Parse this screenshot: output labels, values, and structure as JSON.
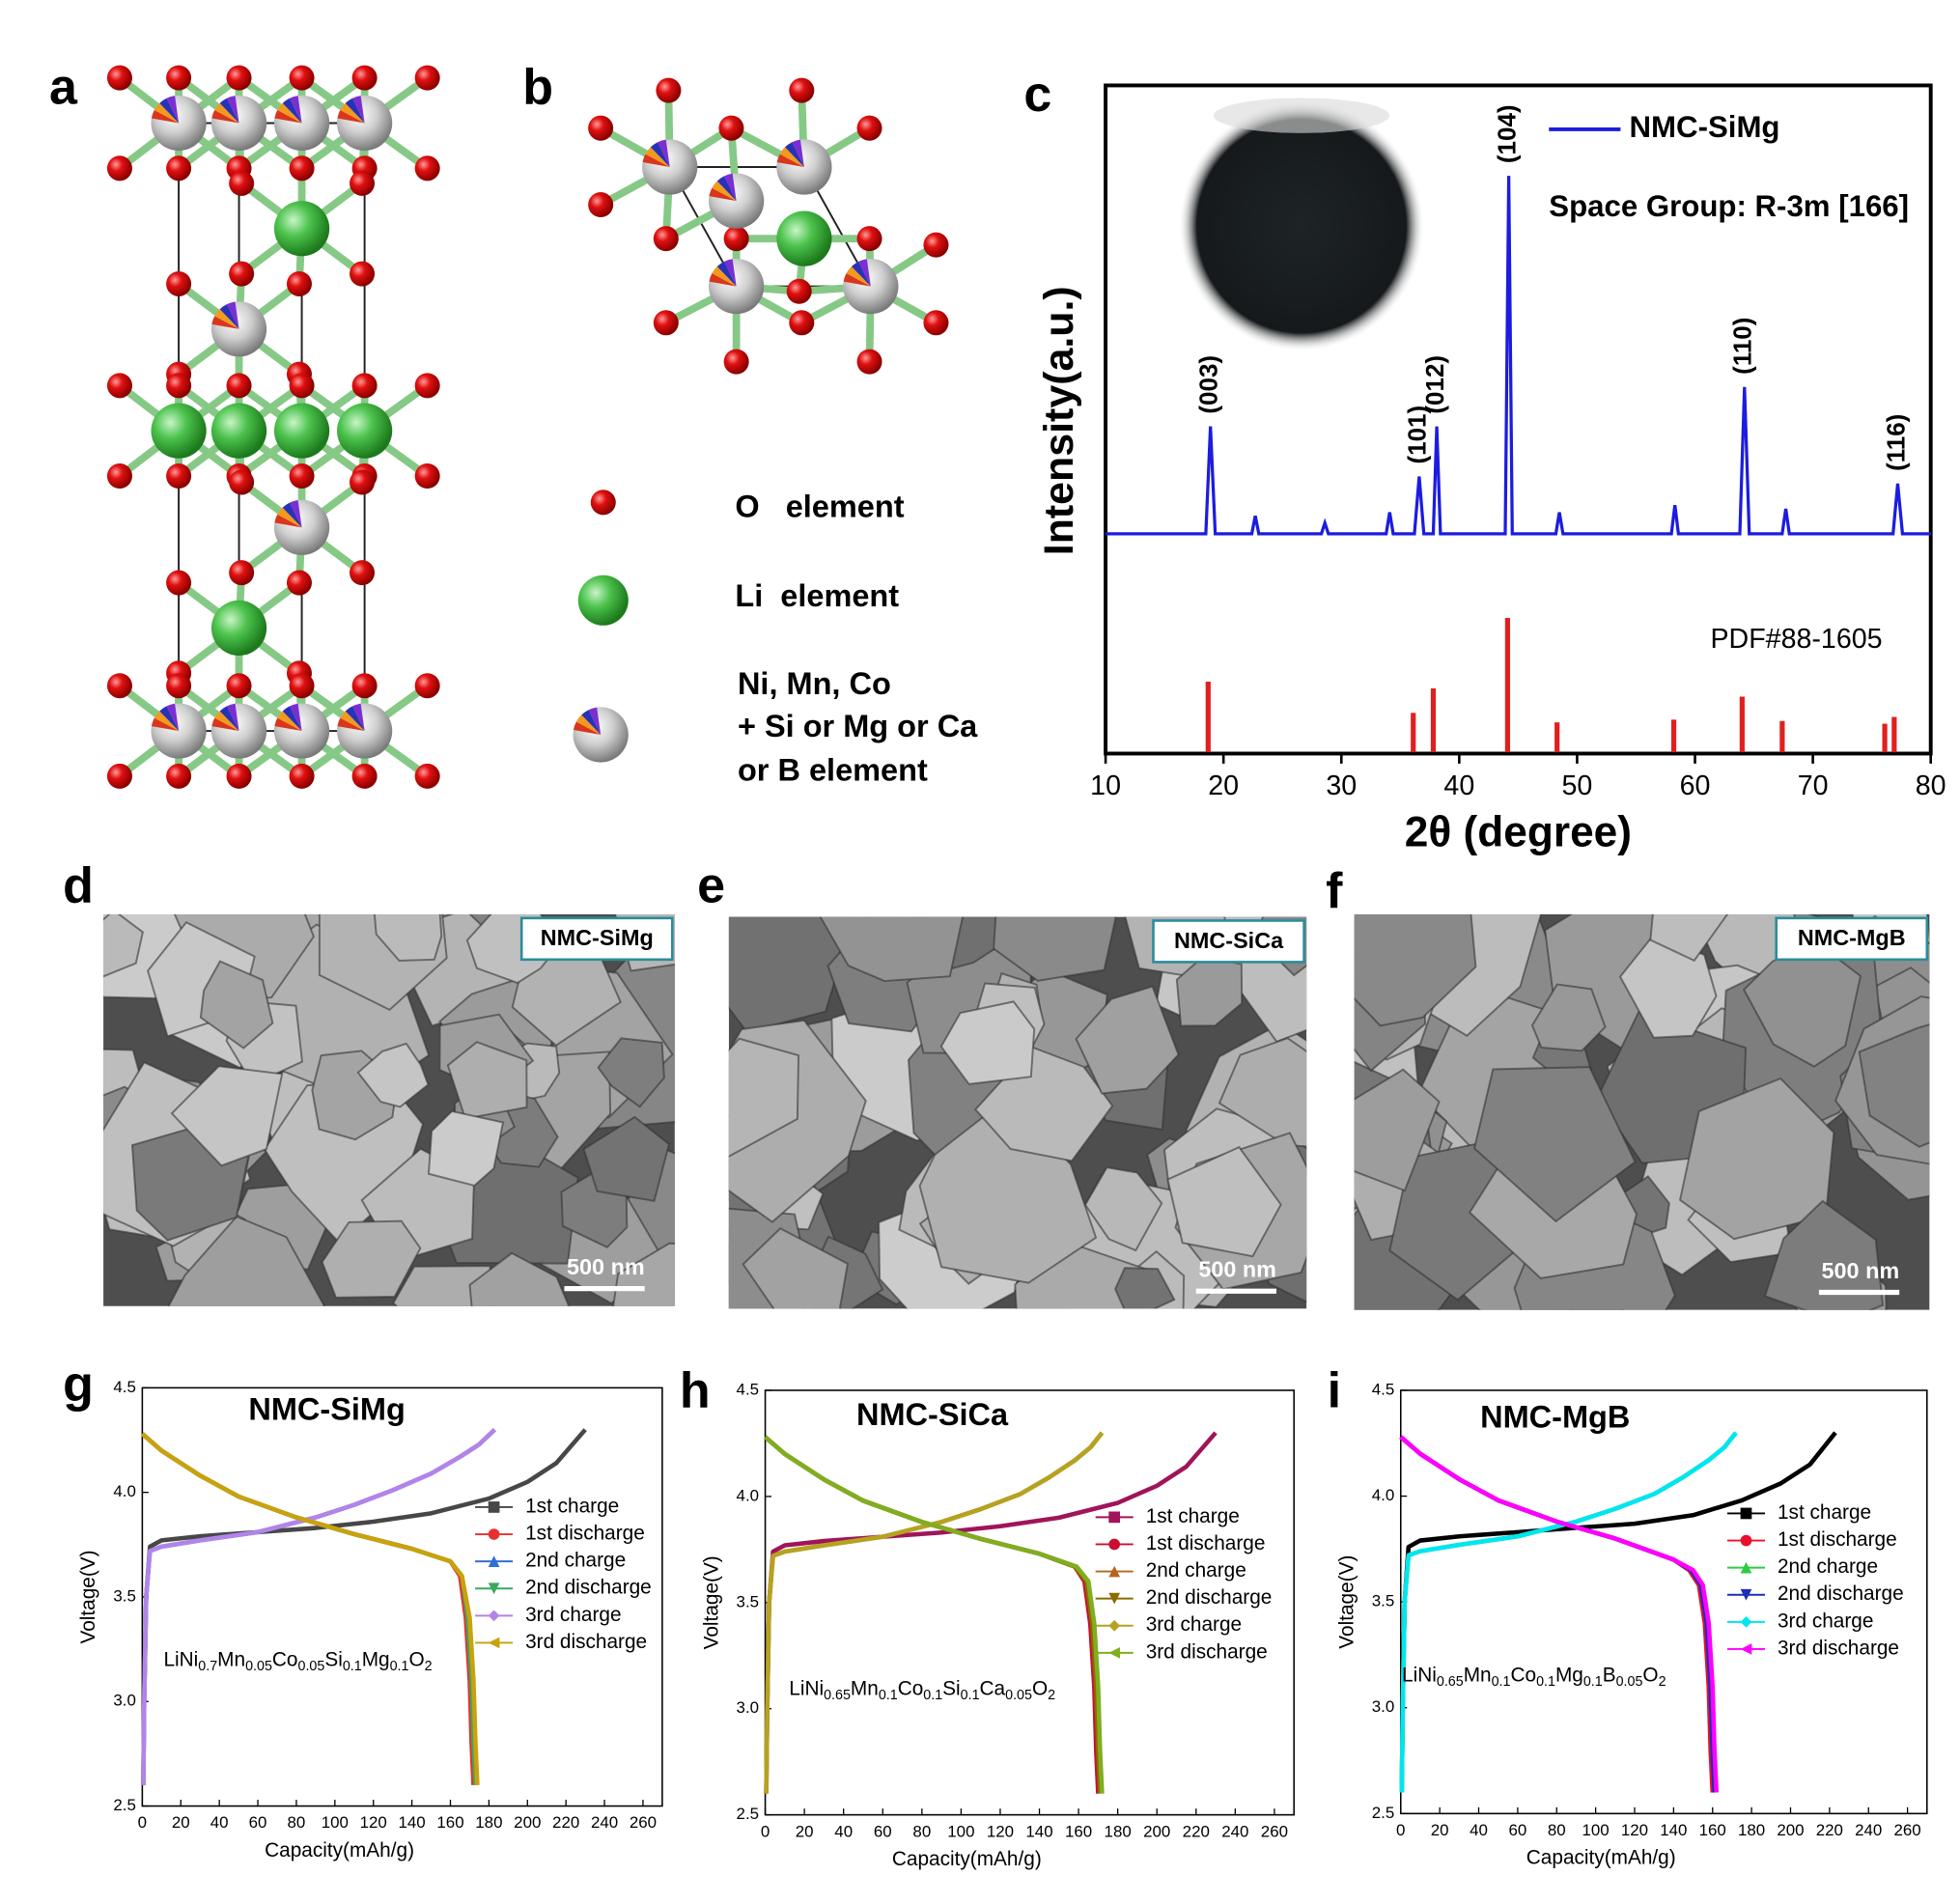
{
  "panel_labels": [
    "a",
    "b",
    "c",
    "d",
    "e",
    "f",
    "g",
    "h",
    "i"
  ],
  "structure_legend": [
    "O   element",
    "Li  element",
    "Ni, Mn, Co",
    "+ Si or Mg or Ca",
    "or B element"
  ],
  "sem_images": [
    {
      "label": "NMC-SiMg",
      "scale_bar": "500 nm"
    },
    {
      "label": "NMC-SiCa",
      "scale_bar": "500 nm"
    },
    {
      "label": "NMC-MgB",
      "scale_bar": "500 nm"
    }
  ],
  "chart_data": [
    {
      "type": "line",
      "x_label": "2θ (degree)",
      "y_label": "Intensity(a.u.)",
      "xlim": [
        10,
        80
      ],
      "xticks": [
        10,
        20,
        30,
        40,
        50,
        60,
        70,
        80
      ],
      "annotation": "Space Group: R-3m [166]",
      "series": [
        {
          "name": "NMC-SiMg",
          "color": "#1c1ce0",
          "x": [
            10,
            18.5,
            18.9,
            19.3,
            22.4,
            22.7,
            23.0,
            28.3,
            28.6,
            28.9,
            33.8,
            34.1,
            34.4,
            36.2,
            36.6,
            37.0,
            37.8,
            38.1,
            38.4,
            43.9,
            44.2,
            44.5,
            48.2,
            48.5,
            48.8,
            58.0,
            58.3,
            58.6,
            63.8,
            64.2,
            64.6,
            67.4,
            67.7,
            68.0,
            76.8,
            77.2,
            77.6,
            80
          ],
          "values": [
            0,
            0,
            30,
            0,
            0,
            5,
            0,
            0,
            3,
            0,
            0,
            6,
            0,
            0,
            16,
            0,
            0,
            30,
            0,
            0,
            100,
            0,
            0,
            6,
            0,
            0,
            8,
            0,
            0,
            41,
            0,
            0,
            7,
            0,
            0,
            14,
            0,
            0
          ]
        }
      ],
      "reference": {
        "name": "PDF#88-1605",
        "color": "#e02020",
        "x": [
          18.7,
          36.1,
          37.8,
          44.1,
          48.3,
          58.2,
          64.0,
          67.4,
          76.1,
          76.9
        ],
        "values": [
          53,
          30,
          48,
          100,
          23,
          25,
          42,
          24,
          22,
          27
        ]
      },
      "peak_labels": [
        {
          "x": 18.9,
          "label": "(003)"
        },
        {
          "x": 36.6,
          "label": "(101)"
        },
        {
          "x": 38.1,
          "label": "(012)"
        },
        {
          "x": 44.2,
          "label": "(104)"
        },
        {
          "x": 64.2,
          "label": "(110)"
        },
        {
          "x": 77.2,
          "label": "(116)"
        }
      ]
    },
    {
      "type": "line",
      "title": "NMC-SiMg",
      "formula": [
        {
          "text": "LiNi",
          "sub": "0.7"
        },
        {
          "text": "Mn",
          "sub": "0.05"
        },
        {
          "text": "Co",
          "sub": "0.05"
        },
        {
          "text": "Si",
          "sub": "0.1"
        },
        {
          "text": "Mg",
          "sub": "0.1"
        },
        {
          "text": "O",
          "sub": "2"
        }
      ],
      "x_label": "Capacity(mAh/g)",
      "y_label": "Voltage(V)",
      "xlim": [
        0,
        270
      ],
      "xticks": [
        0,
        20,
        40,
        60,
        80,
        100,
        120,
        140,
        160,
        180,
        200,
        220,
        240,
        260
      ],
      "ylim": [
        2.5,
        4.5
      ],
      "yticks": [
        2.5,
        {
          "value": 3,
          "label": "3.0"
        },
        3.5,
        {
          "value": 4,
          "label": "4.0"
        },
        4.5
      ],
      "series": [
        {
          "name": "1st charge",
          "color": "#474747",
          "x": [
            0.5,
            1,
            2,
            4,
            10,
            30,
            60,
            90,
            120,
            150,
            180,
            200,
            215,
            230
          ],
          "values": [
            2.6,
            3.0,
            3.5,
            3.74,
            3.77,
            3.79,
            3.81,
            3.83,
            3.86,
            3.9,
            3.97,
            4.05,
            4.14,
            4.3
          ]
        },
        {
          "name": "1st discharge",
          "color": "#e8312f",
          "x": [
            0,
            10,
            30,
            50,
            80,
            110,
            140,
            160,
            165,
            168,
            170,
            171,
            172
          ],
          "values": [
            4.28,
            4.2,
            4.08,
            3.98,
            3.88,
            3.8,
            3.73,
            3.67,
            3.6,
            3.4,
            3.1,
            2.8,
            2.6
          ]
        },
        {
          "name": "2nd charge",
          "color": "#2e6fd8",
          "x": [
            0.5,
            1,
            2,
            4,
            10,
            30,
            60,
            90,
            110,
            130,
            150,
            165,
            175,
            183
          ],
          "values": [
            2.6,
            3.0,
            3.5,
            3.72,
            3.74,
            3.77,
            3.81,
            3.88,
            3.94,
            4.01,
            4.09,
            4.17,
            4.23,
            4.3
          ]
        },
        {
          "name": "2nd discharge",
          "color": "#3aa860",
          "x": [
            0,
            10,
            30,
            50,
            80,
            110,
            140,
            160,
            166,
            169,
            171,
            172,
            173
          ],
          "values": [
            4.28,
            4.2,
            4.08,
            3.98,
            3.88,
            3.8,
            3.73,
            3.67,
            3.6,
            3.4,
            3.1,
            2.8,
            2.6
          ]
        },
        {
          "name": "3rd charge",
          "color": "#b384e8",
          "x": [
            0.5,
            1,
            2,
            4,
            10,
            30,
            60,
            90,
            110,
            130,
            150,
            165,
            175,
            183
          ],
          "values": [
            2.6,
            3.0,
            3.5,
            3.72,
            3.74,
            3.77,
            3.81,
            3.88,
            3.94,
            4.01,
            4.09,
            4.17,
            4.23,
            4.3
          ]
        },
        {
          "name": "3rd discharge",
          "color": "#c9a20c",
          "x": [
            0,
            10,
            30,
            50,
            80,
            110,
            140,
            160,
            166,
            170,
            172,
            173,
            174
          ],
          "values": [
            4.28,
            4.2,
            4.08,
            3.98,
            3.88,
            3.8,
            3.73,
            3.67,
            3.6,
            3.4,
            3.1,
            2.8,
            2.6
          ]
        }
      ]
    },
    {
      "type": "line",
      "title": "NMC-SiCa",
      "formula": [
        {
          "text": "LiNi",
          "sub": "0.65"
        },
        {
          "text": "Mn",
          "sub": "0.1"
        },
        {
          "text": "Co",
          "sub": "0.1"
        },
        {
          "text": "Si",
          "sub": "0.1"
        },
        {
          "text": "Ca",
          "sub": "0.05"
        },
        {
          "text": "O",
          "sub": "2"
        }
      ],
      "x_label": "Capacity(mAh/g)",
      "y_label": "Voltage(V)",
      "xlim": [
        0,
        270
      ],
      "xticks": [
        0,
        20,
        40,
        60,
        80,
        100,
        120,
        140,
        160,
        180,
        200,
        220,
        240,
        260
      ],
      "ylim": [
        2.5,
        4.5
      ],
      "yticks": [
        2.5,
        {
          "value": 3,
          "label": "3.0"
        },
        3.5,
        {
          "value": 4,
          "label": "4.0"
        },
        4.5
      ],
      "series": [
        {
          "name": "1st charge",
          "color": "#a0145a",
          "x": [
            0.5,
            1,
            2,
            4,
            10,
            30,
            60,
            90,
            120,
            150,
            180,
            200,
            215,
            230
          ],
          "values": [
            2.6,
            3.0,
            3.5,
            3.74,
            3.77,
            3.79,
            3.81,
            3.83,
            3.86,
            3.9,
            3.97,
            4.05,
            4.14,
            4.3
          ]
        },
        {
          "name": "1st discharge",
          "color": "#c8102e",
          "x": [
            0,
            10,
            30,
            50,
            80,
            110,
            140,
            158,
            163,
            166,
            168,
            169,
            170
          ],
          "values": [
            4.28,
            4.2,
            4.08,
            3.98,
            3.88,
            3.8,
            3.73,
            3.67,
            3.6,
            3.4,
            3.1,
            2.8,
            2.6
          ]
        },
        {
          "name": "2nd charge",
          "color": "#b5651d",
          "x": [
            0.5,
            1,
            2,
            4,
            10,
            30,
            60,
            90,
            110,
            130,
            145,
            158,
            166,
            172
          ],
          "values": [
            2.6,
            3.0,
            3.5,
            3.72,
            3.74,
            3.77,
            3.81,
            3.88,
            3.94,
            4.01,
            4.09,
            4.17,
            4.23,
            4.3
          ]
        },
        {
          "name": "2nd discharge",
          "color": "#8b6b00",
          "x": [
            0,
            10,
            30,
            50,
            80,
            110,
            140,
            158,
            164,
            167,
            169,
            170,
            171
          ],
          "values": [
            4.28,
            4.2,
            4.08,
            3.98,
            3.88,
            3.8,
            3.73,
            3.67,
            3.6,
            3.4,
            3.1,
            2.8,
            2.6
          ]
        },
        {
          "name": "3rd charge",
          "color": "#b5a31f",
          "x": [
            0.5,
            1,
            2,
            4,
            10,
            30,
            60,
            90,
            110,
            130,
            145,
            158,
            166,
            172
          ],
          "values": [
            2.6,
            3.0,
            3.5,
            3.72,
            3.74,
            3.77,
            3.81,
            3.88,
            3.94,
            4.01,
            4.09,
            4.17,
            4.23,
            4.3
          ]
        },
        {
          "name": "3rd discharge",
          "color": "#7fae1f",
          "x": [
            0,
            10,
            30,
            50,
            80,
            110,
            140,
            159,
            165,
            168,
            170,
            171,
            172
          ],
          "values": [
            4.28,
            4.2,
            4.08,
            3.98,
            3.88,
            3.8,
            3.73,
            3.67,
            3.6,
            3.4,
            3.1,
            2.8,
            2.6
          ]
        }
      ]
    },
    {
      "type": "line",
      "title": "NMC-MgB",
      "formula": [
        {
          "text": "LiNi",
          "sub": "0.65"
        },
        {
          "text": "Mn",
          "sub": "0.1"
        },
        {
          "text": "Co",
          "sub": "0.1"
        },
        {
          "text": "Mg",
          "sub": "0.1"
        },
        {
          "text": "B",
          "sub": "0.05"
        },
        {
          "text": "O",
          "sub": "2"
        }
      ],
      "x_label": "Capacity(mAh/g)",
      "y_label": "Voltage(V)",
      "xlim": [
        0,
        270
      ],
      "xticks": [
        0,
        20,
        40,
        60,
        80,
        100,
        120,
        140,
        160,
        180,
        200,
        220,
        240,
        260
      ],
      "ylim": [
        2.5,
        4.5
      ],
      "yticks": [
        2.5,
        {
          "value": 3,
          "label": "3.0"
        },
        3.5,
        {
          "value": 4,
          "label": "4.0"
        },
        4.5
      ],
      "series": [
        {
          "name": "1st charge",
          "color": "#000000",
          "x": [
            0.5,
            1,
            2,
            4,
            10,
            30,
            60,
            90,
            120,
            150,
            175,
            195,
            210,
            223
          ],
          "values": [
            2.6,
            3.0,
            3.5,
            3.76,
            3.79,
            3.81,
            3.83,
            3.85,
            3.87,
            3.91,
            3.98,
            4.06,
            4.15,
            4.3
          ]
        },
        {
          "name": "1st discharge",
          "color": "#e8112d",
          "x": [
            0,
            10,
            30,
            50,
            80,
            110,
            140,
            148,
            153,
            156,
            158,
            159,
            160
          ],
          "values": [
            4.28,
            4.2,
            4.08,
            3.98,
            3.88,
            3.8,
            3.7,
            3.65,
            3.58,
            3.4,
            3.1,
            2.8,
            2.6
          ]
        },
        {
          "name": "2nd charge",
          "color": "#2ecc40",
          "x": [
            0.5,
            1,
            2,
            4,
            10,
            30,
            60,
            90,
            110,
            130,
            145,
            158,
            166,
            172
          ],
          "values": [
            2.6,
            3.0,
            3.5,
            3.72,
            3.74,
            3.77,
            3.81,
            3.88,
            3.94,
            4.01,
            4.09,
            4.17,
            4.23,
            4.3
          ]
        },
        {
          "name": "2nd discharge",
          "color": "#1b2fb8",
          "x": [
            0,
            10,
            30,
            50,
            80,
            110,
            140,
            149,
            154,
            157,
            159,
            160,
            161
          ],
          "values": [
            4.28,
            4.2,
            4.08,
            3.98,
            3.88,
            3.8,
            3.7,
            3.65,
            3.58,
            3.4,
            3.1,
            2.8,
            2.6
          ]
        },
        {
          "name": "3rd charge",
          "color": "#00e6f0",
          "x": [
            0.5,
            1,
            2,
            4,
            10,
            30,
            60,
            90,
            110,
            130,
            145,
            158,
            166,
            172
          ],
          "values": [
            2.6,
            3.0,
            3.5,
            3.72,
            3.74,
            3.77,
            3.81,
            3.88,
            3.94,
            4.01,
            4.09,
            4.17,
            4.23,
            4.3
          ]
        },
        {
          "name": "3rd discharge",
          "color": "#ff00ff",
          "x": [
            0,
            10,
            30,
            50,
            80,
            110,
            140,
            150,
            155,
            158,
            160,
            161,
            162
          ],
          "values": [
            4.28,
            4.2,
            4.08,
            3.98,
            3.88,
            3.8,
            3.7,
            3.65,
            3.58,
            3.4,
            3.1,
            2.8,
            2.6
          ]
        }
      ]
    }
  ]
}
